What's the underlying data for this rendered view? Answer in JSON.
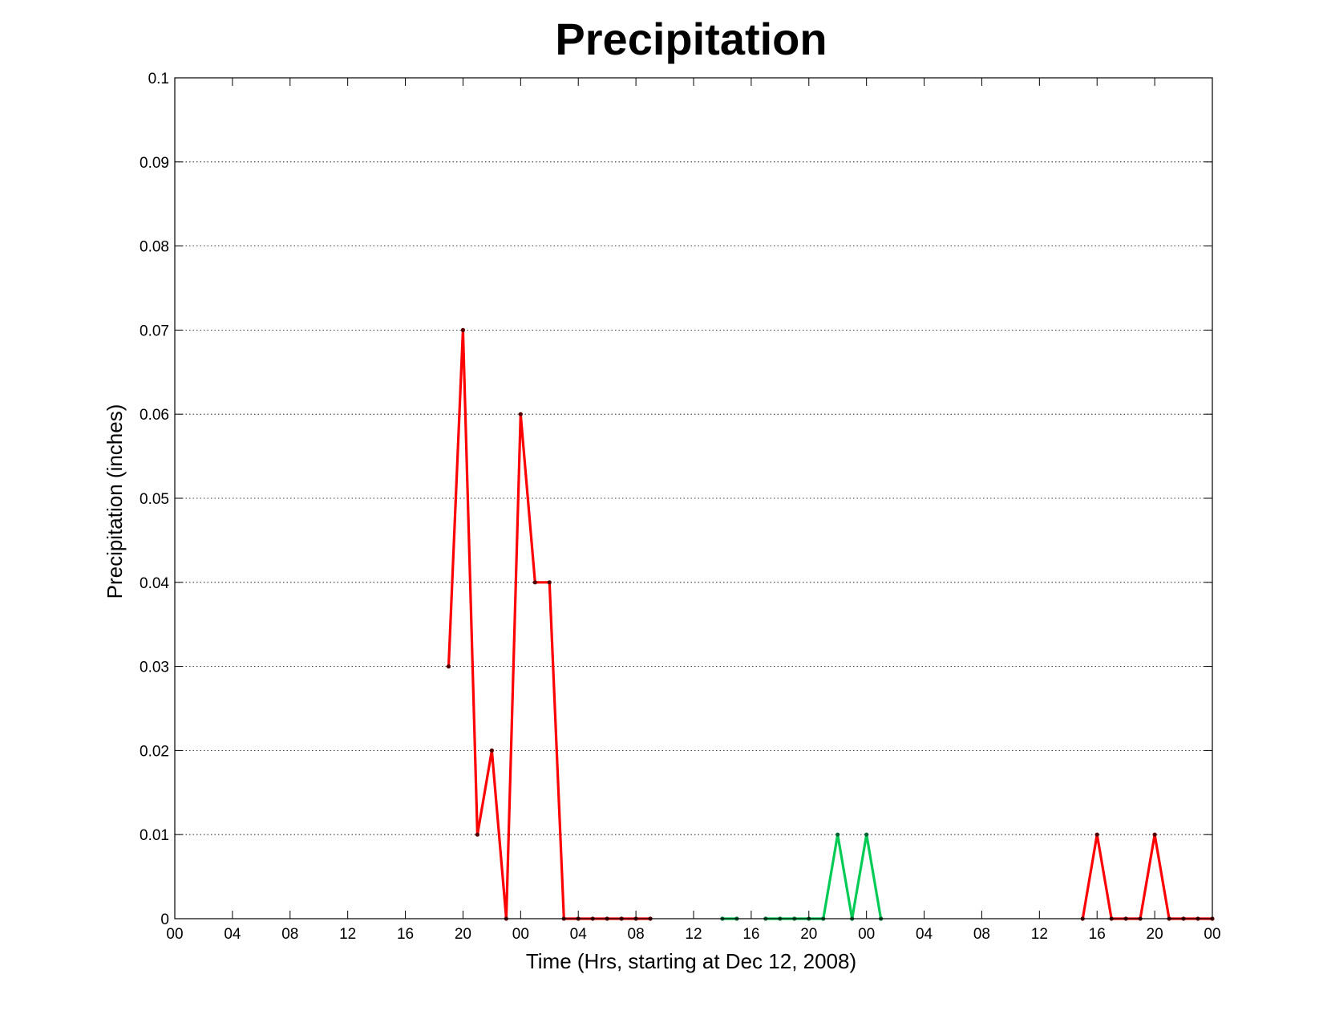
{
  "chart_data": {
    "type": "line",
    "title": "Precipitation",
    "xlabel": "Time (Hrs, starting at Dec 12, 2008)",
    "ylabel": "Precipitation (inches)",
    "x_unit": "hours",
    "xlim": [
      0,
      72
    ],
    "ylim": [
      0,
      0.1
    ],
    "grid": "y-dotted",
    "legend": "none",
    "x_ticks": [
      0,
      4,
      8,
      12,
      16,
      20,
      24,
      28,
      32,
      36,
      40,
      44,
      48,
      52,
      56,
      60,
      64,
      68,
      72
    ],
    "x_tick_labels": [
      "00",
      "04",
      "08",
      "12",
      "16",
      "20",
      "00",
      "04",
      "08",
      "12",
      "16",
      "20",
      "00",
      "04",
      "08",
      "12",
      "16",
      "20",
      "00"
    ],
    "y_ticks": [
      0,
      0.01,
      0.02,
      0.03,
      0.04,
      0.05,
      0.06,
      0.07,
      0.08,
      0.09,
      0.1
    ],
    "y_tick_labels": [
      "0",
      "0.01",
      "0.02",
      "0.03",
      "0.04",
      "0.05",
      "0.06",
      "0.07",
      "0.08",
      "0.09",
      "0.1"
    ],
    "series": [
      {
        "color": "#ff0000",
        "x": [
          19,
          20,
          21,
          22,
          23,
          24,
          25,
          26,
          27,
          28,
          29,
          30,
          31,
          32,
          33
        ],
        "values": [
          0.03,
          0.07,
          0.01,
          0.02,
          0,
          0.06,
          0.04,
          0.04,
          0,
          0,
          0,
          0,
          0,
          0,
          0
        ]
      },
      {
        "color": "#00cc55",
        "x": [
          38,
          39
        ],
        "values": [
          0,
          0
        ]
      },
      {
        "color": "#00cc55",
        "x": [
          41,
          42,
          43,
          44,
          45,
          46,
          47,
          48,
          49
        ],
        "values": [
          0,
          0,
          0,
          0,
          0,
          0.01,
          0,
          0.01,
          0
        ]
      },
      {
        "color": "#ff0000",
        "x": [
          63,
          64,
          65,
          66,
          67,
          68,
          69,
          70,
          71,
          72
        ],
        "values": [
          0,
          0.01,
          0,
          0,
          0,
          0.01,
          0,
          0,
          0,
          0
        ]
      }
    ]
  }
}
